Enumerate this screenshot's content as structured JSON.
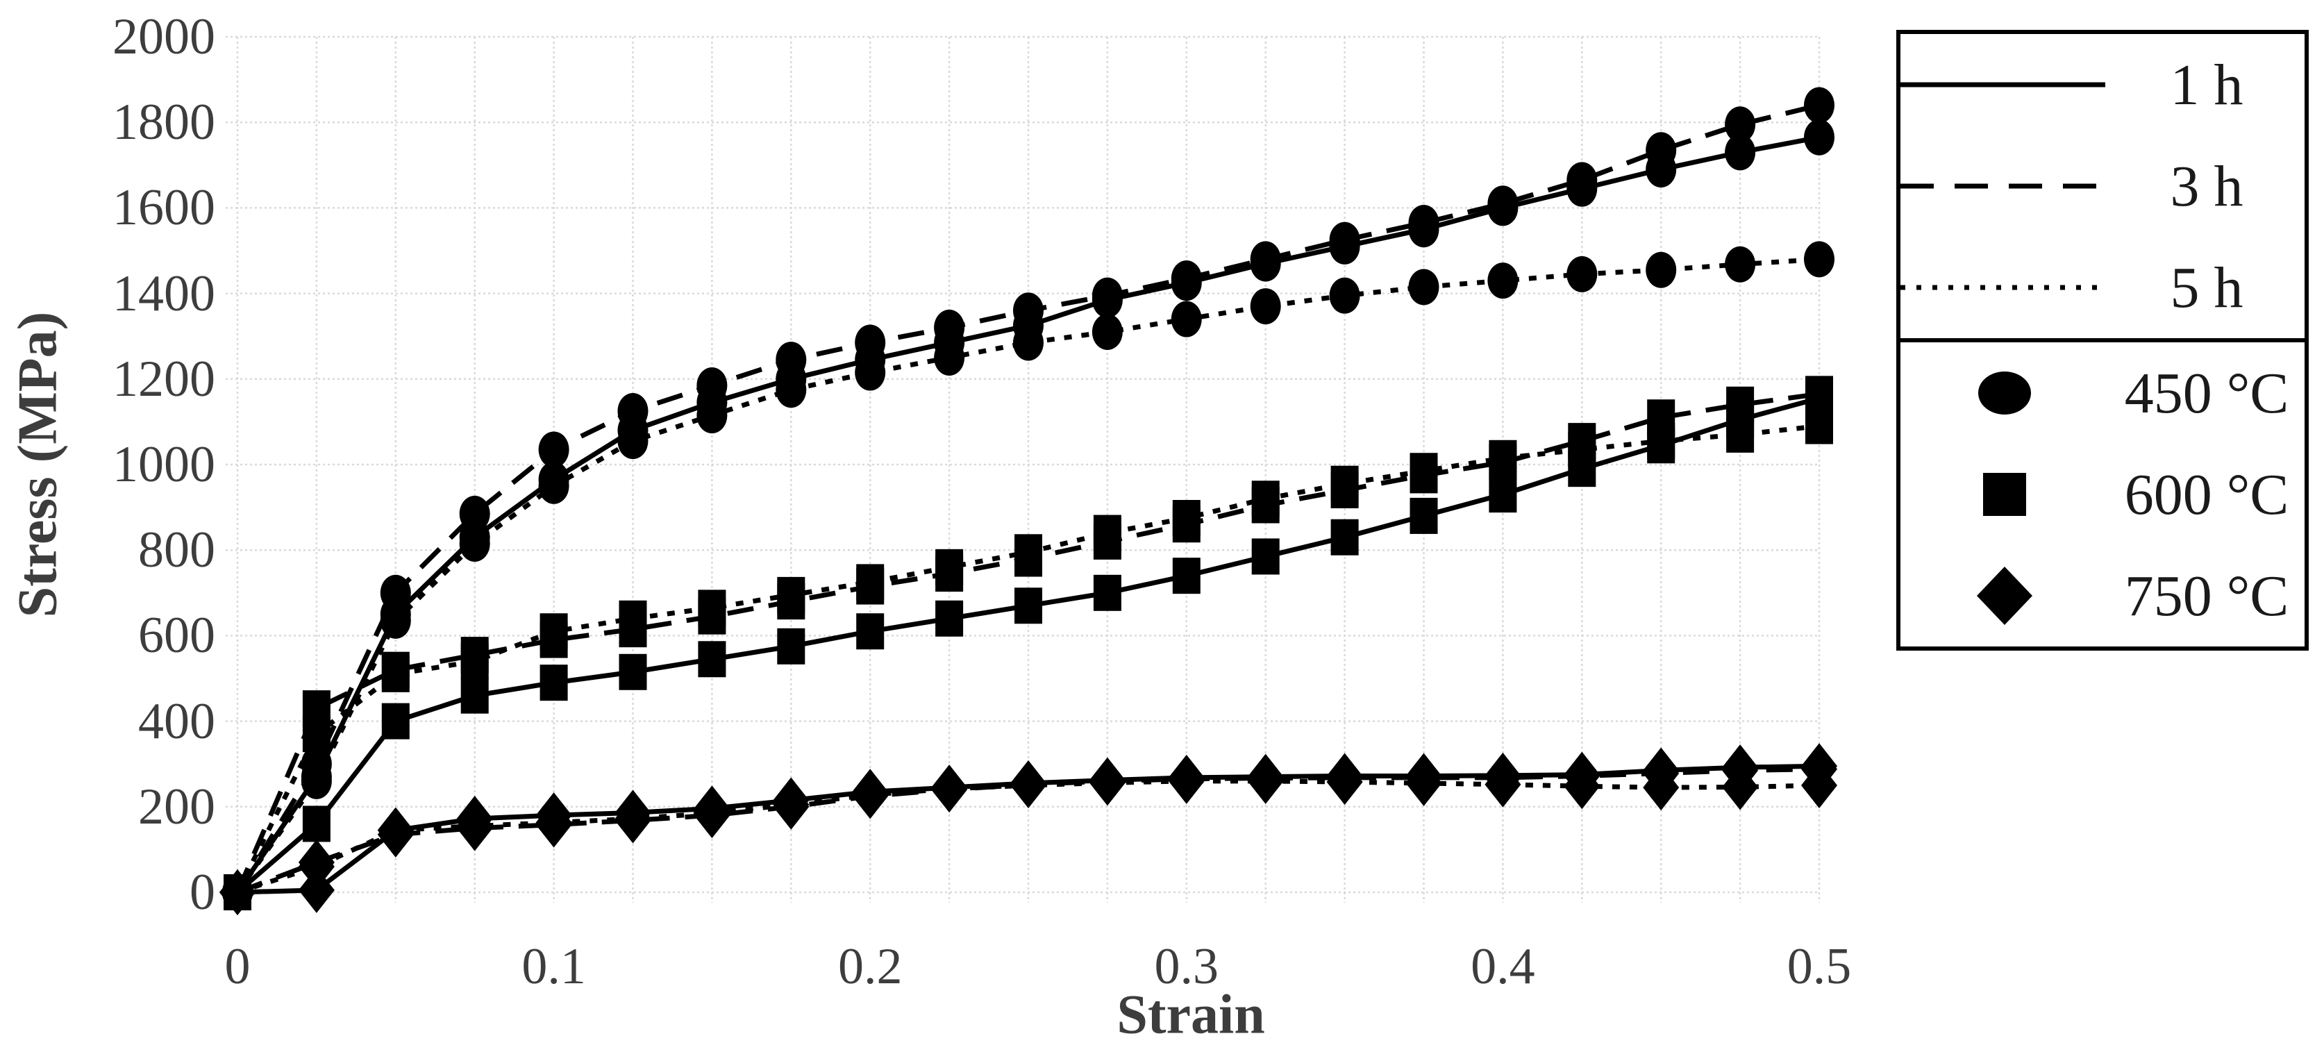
{
  "chart_data": {
    "type": "line",
    "title": "",
    "xlabel": "Strain",
    "ylabel": "Stress (MPa)",
    "xlim": [
      0,
      0.5
    ],
    "ylim": [
      0,
      2000
    ],
    "x_tick_labels": [
      "0",
      "0.1",
      "0.2",
      "0.3",
      "0.4",
      "0.5"
    ],
    "x_tick_values": [
      0,
      0.1,
      0.2,
      0.3,
      0.4,
      0.5
    ],
    "y_tick_labels": [
      "0",
      "200",
      "400",
      "600",
      "800",
      "1000",
      "1200",
      "1400",
      "1600",
      "1800",
      "2000"
    ],
    "y_tick_values": [
      0,
      200,
      400,
      600,
      800,
      1000,
      1200,
      1400,
      1600,
      1800,
      2000
    ],
    "grid": {
      "x_step": 0.025,
      "y_step": 200,
      "style": "dotted",
      "visible": true
    },
    "legend_position": "outside-right-top",
    "x": [
      0,
      0.025,
      0.05,
      0.075,
      0.1,
      0.125,
      0.15,
      0.175,
      0.2,
      0.225,
      0.25,
      0.275,
      0.3,
      0.325,
      0.35,
      0.375,
      0.4,
      0.425,
      0.45,
      0.475,
      0.5
    ],
    "series": [
      {
        "name": "450 °C – 1 h",
        "temperature": "450 °C",
        "time": "1 h",
        "line_style": "solid",
        "marker": "circle",
        "values": [
          0,
          270,
          650,
          830,
          965,
          1080,
          1145,
          1200,
          1245,
          1285,
          1325,
          1385,
          1425,
          1470,
          1510,
          1550,
          1600,
          1645,
          1690,
          1730,
          1765
        ]
      },
      {
        "name": "450 °C – 3 h",
        "temperature": "450 °C",
        "time": "3 h",
        "line_style": "long-dash",
        "marker": "circle",
        "values": [
          0,
          300,
          700,
          885,
          1035,
          1125,
          1185,
          1245,
          1285,
          1320,
          1360,
          1395,
          1435,
          1480,
          1525,
          1565,
          1610,
          1665,
          1735,
          1795,
          1840
        ]
      },
      {
        "name": "450 °C – 5 h",
        "temperature": "450 °C",
        "time": "5 h",
        "line_style": "short-dash",
        "marker": "circle",
        "values": [
          0,
          260,
          635,
          815,
          950,
          1055,
          1115,
          1175,
          1215,
          1250,
          1285,
          1310,
          1340,
          1370,
          1395,
          1415,
          1430,
          1445,
          1455,
          1468,
          1480
        ]
      },
      {
        "name": "600 °C – 1 h",
        "temperature": "600 °C",
        "time": "1 h",
        "line_style": "solid",
        "marker": "square",
        "values": [
          0,
          160,
          400,
          460,
          490,
          515,
          545,
          575,
          610,
          640,
          670,
          700,
          740,
          785,
          830,
          880,
          930,
          990,
          1045,
          1105,
          1155
        ]
      },
      {
        "name": "600 °C – 3 h",
        "temperature": "600 °C",
        "time": "3 h",
        "line_style": "long-dash",
        "marker": "square",
        "values": [
          0,
          430,
          520,
          555,
          590,
          615,
          645,
          680,
          715,
          745,
          780,
          820,
          860,
          905,
          940,
          975,
          1005,
          1055,
          1110,
          1140,
          1165
        ]
      },
      {
        "name": "600 °C – 5 h",
        "temperature": "600 °C",
        "time": "5 h",
        "line_style": "short-dash",
        "marker": "square",
        "values": [
          0,
          370,
          510,
          540,
          610,
          640,
          665,
          695,
          725,
          760,
          795,
          840,
          875,
          920,
          955,
          985,
          1015,
          1035,
          1055,
          1070,
          1090
        ]
      },
      {
        "name": "750 °C – 1 h",
        "temperature": "750 °C",
        "time": "1 h",
        "line_style": "solid",
        "marker": "diamond",
        "values": [
          0,
          5,
          145,
          172,
          180,
          186,
          196,
          215,
          235,
          245,
          255,
          262,
          268,
          270,
          272,
          272,
          273,
          275,
          285,
          292,
          295
        ]
      },
      {
        "name": "750 °C – 3 h",
        "temperature": "750 °C",
        "time": "3 h",
        "line_style": "long-dash",
        "marker": "diamond",
        "values": [
          0,
          70,
          135,
          150,
          158,
          168,
          180,
          200,
          225,
          240,
          252,
          260,
          265,
          267,
          268,
          268,
          268,
          272,
          278,
          285,
          288
        ]
      },
      {
        "name": "750 °C – 5 h",
        "temperature": "750 °C",
        "time": "5 h",
        "line_style": "short-dash",
        "marker": "diamond",
        "values": [
          0,
          60,
          145,
          155,
          163,
          172,
          185,
          205,
          228,
          242,
          250,
          256,
          260,
          260,
          258,
          255,
          252,
          248,
          245,
          246,
          250
        ]
      }
    ]
  },
  "legend": {
    "line_styles": [
      {
        "label": "1 h",
        "style": "solid"
      },
      {
        "label": "3 h",
        "style": "long-dash"
      },
      {
        "label": "5 h",
        "style": "short-dash"
      }
    ],
    "markers": [
      {
        "label": "450 °C",
        "marker": "circle"
      },
      {
        "label": "600 °C",
        "marker": "square"
      },
      {
        "label": "750 °C",
        "marker": "diamond"
      }
    ]
  },
  "colors": {
    "series": "#000000",
    "grid": "#d9d9d9",
    "tick_text": "#3d3d3d",
    "axis_title_text": "#3d3d3d",
    "legend_text": "#1a1a1a",
    "legend_border": "#000000",
    "background": "#ffffff"
  }
}
